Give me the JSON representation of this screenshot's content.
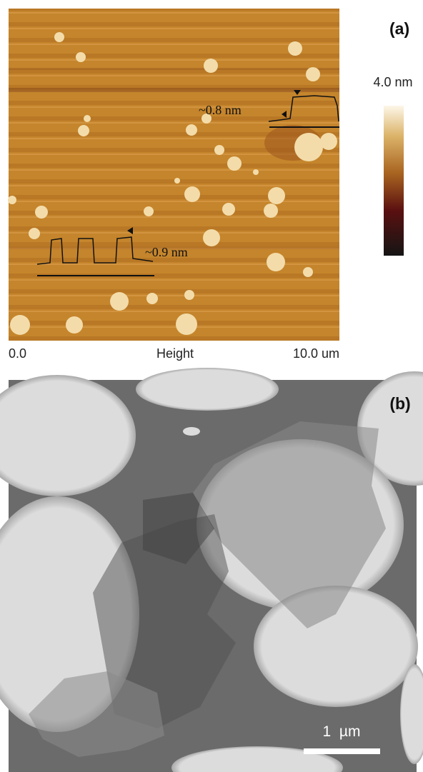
{
  "panel_a": {
    "label": "(a)",
    "colorbar_max": "4.0 nm",
    "annotations": [
      "~0.8 nm",
      "~0.9 nm"
    ],
    "axis": {
      "start": "0.0",
      "title": "Height",
      "end": "10.0 um"
    }
  },
  "panel_b": {
    "label": "(b)",
    "scale_bar": "1  µm"
  }
}
